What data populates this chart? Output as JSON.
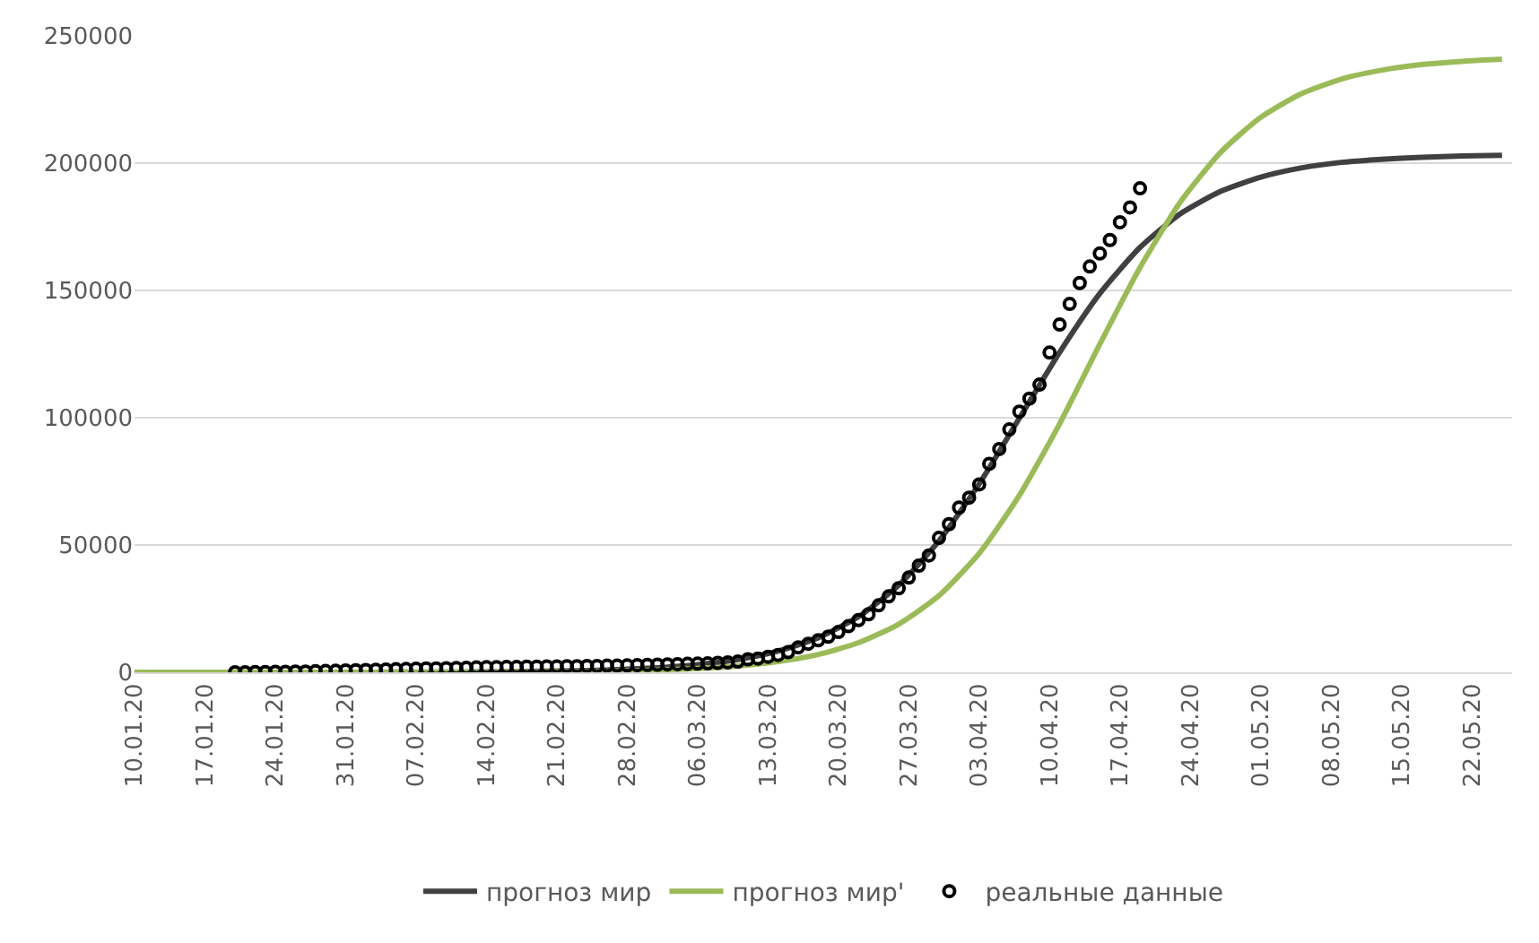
{
  "chart_data": {
    "type": "line",
    "xlim": [
      "--01-10",
      "--05-26"
    ],
    "xticks": [
      {
        "value": "--01-10",
        "label": "10.01.20"
      },
      {
        "value": "--01-17",
        "label": "17.01.20"
      },
      {
        "value": "--01-24",
        "label": "24.01.20"
      },
      {
        "value": "--01-31",
        "label": "31.01.20"
      },
      {
        "value": "--02-07",
        "label": "07.02.20"
      },
      {
        "value": "--02-14",
        "label": "14.02.20"
      },
      {
        "value": "--02-21",
        "label": "21.02.20"
      },
      {
        "value": "--02-28",
        "label": "28.02.20"
      },
      {
        "value": "--03-06",
        "label": "06.03.20"
      },
      {
        "value": "--03-13",
        "label": "13.03.20"
      },
      {
        "value": "--03-20",
        "label": "20.03.20"
      },
      {
        "value": "--03-27",
        "label": "27.03.20"
      },
      {
        "value": "--04-03",
        "label": "03.04.20"
      },
      {
        "value": "--04-10",
        "label": "10.04.20"
      },
      {
        "value": "--04-17",
        "label": "17.04.20"
      },
      {
        "value": "--04-24",
        "label": "24.04.20"
      },
      {
        "value": "--05-01",
        "label": "01.05.20"
      },
      {
        "value": "--05-08",
        "label": "08.05.20"
      },
      {
        "value": "--05-15",
        "label": "15.05.20"
      },
      {
        "value": "--05-22",
        "label": "22.05.20"
      }
    ],
    "ylim": [
      0,
      250000
    ],
    "yticks": [
      0,
      50000,
      100000,
      150000,
      200000,
      250000
    ],
    "grid": "y",
    "legend": "bottom",
    "series": [
      {
        "name": "прогноз мир",
        "color": "#404040",
        "marker": "none",
        "line_style": "solid",
        "x": [
          "--01-10",
          "--01-14",
          "--01-18",
          "--01-22",
          "--01-26",
          "--01-30",
          "--02-03",
          "--02-07",
          "--02-11",
          "--02-15",
          "--02-19",
          "--02-23",
          "--02-27",
          "--03-02",
          "--03-06",
          "--03-10",
          "--03-14",
          "--03-18",
          "--03-22",
          "--03-26",
          "--03-30",
          "--04-03",
          "--04-07",
          "--04-11",
          "--04-15",
          "--04-19",
          "--04-23",
          "--04-27",
          "--05-01",
          "--05-05",
          "--05-09",
          "--05-13",
          "--05-17",
          "--05-21",
          "--05-25"
        ],
        "values": [
          0,
          0,
          0,
          0,
          0,
          0,
          0,
          100,
          100,
          200,
          400,
          600,
          1100,
          1800,
          3000,
          5000,
          8300,
          13600,
          21800,
          34200,
          51600,
          74000,
          99800,
          125700,
          148800,
          166900,
          180100,
          188900,
          194500,
          198100,
          200300,
          201500,
          202300,
          202800,
          203100
        ]
      },
      {
        "name": "прогноз мир'",
        "color": "#9bbb59",
        "marker": "none",
        "line_style": "solid",
        "x": [
          "--01-10",
          "--01-14",
          "--01-18",
          "--01-22",
          "--01-26",
          "--01-30",
          "--02-03",
          "--02-07",
          "--02-11",
          "--02-15",
          "--02-19",
          "--02-23",
          "--02-27",
          "--03-02",
          "--03-06",
          "--03-10",
          "--03-14",
          "--03-18",
          "--03-22",
          "--03-26",
          "--03-30",
          "--04-03",
          "--04-07",
          "--04-11",
          "--04-15",
          "--04-19",
          "--04-23",
          "--04-27",
          "--05-01",
          "--05-05",
          "--05-09",
          "--05-13",
          "--05-17",
          "--05-21",
          "--05-25"
        ],
        "values": [
          0,
          0,
          0,
          0,
          0,
          0,
          0,
          0,
          0,
          100,
          200,
          300,
          500,
          900,
          1500,
          2500,
          4200,
          7000,
          11600,
          18900,
          30100,
          46700,
          69500,
          97600,
          128900,
          159000,
          184700,
          204200,
          218000,
          227200,
          233000,
          236500,
          238700,
          240000,
          240800
        ]
      },
      {
        "name": "реальные данные",
        "type": "scatter",
        "color": "#000000",
        "marker": "circle",
        "x": [
          "--01-20",
          "--01-21",
          "--01-22",
          "--01-23",
          "--01-24",
          "--01-25",
          "--01-26",
          "--01-27",
          "--01-28",
          "--01-29",
          "--01-30",
          "--01-31",
          "--02-01",
          "--02-02",
          "--02-03",
          "--02-04",
          "--02-05",
          "--02-06",
          "--02-07",
          "--02-08",
          "--02-09",
          "--02-10",
          "--02-11",
          "--02-12",
          "--02-13",
          "--02-14",
          "--02-15",
          "--02-16",
          "--02-17",
          "--02-18",
          "--02-19",
          "--02-20",
          "--02-21",
          "--02-22",
          "--02-23",
          "--02-24",
          "--02-25",
          "--02-26",
          "--02-27",
          "--02-28",
          "--02-29",
          "--03-01",
          "--03-02",
          "--03-03",
          "--03-04",
          "--03-05",
          "--03-06",
          "--03-07",
          "--03-08",
          "--03-09",
          "--03-10",
          "--03-11",
          "--03-12",
          "--03-13",
          "--03-14",
          "--03-15",
          "--03-16",
          "--03-17",
          "--03-18",
          "--03-19",
          "--03-20",
          "--03-21",
          "--03-22",
          "--03-23",
          "--03-24",
          "--03-25",
          "--03-26",
          "--03-27",
          "--03-28",
          "--03-29",
          "--03-30",
          "--03-31",
          "--04-01",
          "--04-02",
          "--04-03",
          "--04-04",
          "--04-05",
          "--04-06",
          "--04-07",
          "--04-08",
          "--04-09",
          "--04-10",
          "--04-11",
          "--04-12",
          "--04-13",
          "--04-14",
          "--04-15",
          "--04-16",
          "--04-17",
          "--04-18",
          "--04-19"
        ],
        "values": [
          0,
          0,
          100,
          100,
          200,
          200,
          300,
          300,
          400,
          500,
          600,
          700,
          800,
          900,
          1000,
          1100,
          1200,
          1300,
          1400,
          1500,
          1500,
          1600,
          1700,
          1800,
          1900,
          2000,
          2000,
          2100,
          2100,
          2200,
          2200,
          2300,
          2300,
          2400,
          2400,
          2500,
          2500,
          2600,
          2600,
          2700,
          2800,
          2900,
          3000,
          3100,
          3200,
          3300,
          3400,
          3500,
          3700,
          3900,
          4200,
          5100,
          5400,
          6100,
          6800,
          7900,
          9800,
          11200,
          12600,
          14000,
          15800,
          18100,
          20500,
          22800,
          26300,
          29800,
          33000,
          37200,
          41900,
          45900,
          52800,
          58200,
          64700,
          68600,
          73800,
          81900,
          87700,
          95400,
          102400,
          107500,
          113000,
          125600,
          136600,
          144700,
          152900,
          159400,
          164500,
          169800,
          176800,
          182600,
          190100
        ]
      }
    ]
  }
}
